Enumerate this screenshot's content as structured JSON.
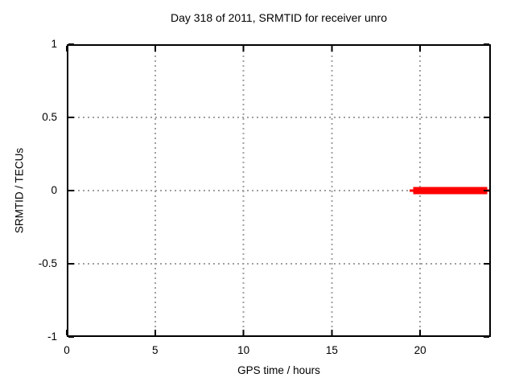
{
  "chart_data": {
    "type": "line",
    "title": "Day 318 of 2011, SRMTID for receiver unro",
    "xlabel": "GPS time / hours",
    "ylabel": "SRMTID / TECUs",
    "xlim": [
      0,
      24
    ],
    "ylim": [
      -1,
      1
    ],
    "x_ticks": [
      0,
      5,
      10,
      15,
      20
    ],
    "y_ticks": [
      1,
      0.5,
      0,
      -0.5,
      -1
    ],
    "grid": true,
    "grid_style": "dotted",
    "legend_position": "none",
    "background_color": "#ffffff",
    "axis_color": "#000000",
    "grid_color": "#a0a0a0",
    "series": [
      {
        "name": "SRMTID",
        "color": "#ff0000",
        "note": "flat data segment at 0 TECUs near end of day; thin line ~19.4-24.0 h, thick core ~19.6-23.8 h",
        "segments": [
          {
            "x1": 19.4,
            "x2": 24.0,
            "y": 0.0,
            "thickness_px": 3
          },
          {
            "x1": 19.6,
            "x2": 23.8,
            "y": 0.0,
            "thickness_px": 9
          }
        ]
      }
    ]
  }
}
